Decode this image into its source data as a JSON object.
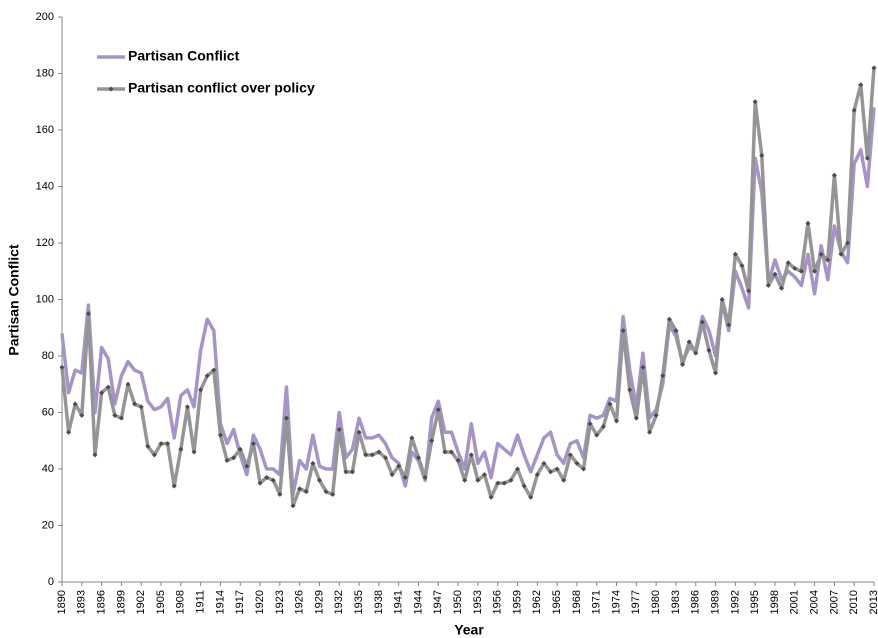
{
  "chart_data": {
    "type": "line",
    "x_label": "Year",
    "y_label": "Partisan Conflict",
    "x": [
      1890,
      1891,
      1892,
      1893,
      1894,
      1895,
      1896,
      1897,
      1898,
      1899,
      1900,
      1901,
      1902,
      1903,
      1904,
      1905,
      1906,
      1907,
      1908,
      1909,
      1910,
      1911,
      1912,
      1913,
      1914,
      1915,
      1916,
      1917,
      1918,
      1919,
      1920,
      1921,
      1922,
      1923,
      1924,
      1925,
      1926,
      1927,
      1928,
      1929,
      1930,
      1931,
      1932,
      1933,
      1934,
      1935,
      1936,
      1937,
      1938,
      1939,
      1940,
      1941,
      1942,
      1943,
      1944,
      1945,
      1946,
      1947,
      1948,
      1949,
      1950,
      1951,
      1952,
      1953,
      1954,
      1955,
      1956,
      1957,
      1958,
      1959,
      1960,
      1961,
      1962,
      1963,
      1964,
      1965,
      1966,
      1967,
      1968,
      1969,
      1970,
      1971,
      1972,
      1973,
      1974,
      1975,
      1976,
      1977,
      1978,
      1979,
      1980,
      1981,
      1982,
      1983,
      1984,
      1985,
      1986,
      1987,
      1988,
      1989,
      1990,
      1991,
      1992,
      1993,
      1994,
      1995,
      1996,
      1997,
      1998,
      1999,
      2000,
      2001,
      2002,
      2003,
      2004,
      2005,
      2006,
      2007,
      2008,
      2009,
      2010,
      2011,
      2012,
      2013
    ],
    "xlim": [
      1890,
      2013
    ],
    "xticks": [
      1890,
      1893,
      1896,
      1899,
      1902,
      1905,
      1908,
      1911,
      1914,
      1917,
      1920,
      1923,
      1926,
      1929,
      1932,
      1935,
      1938,
      1941,
      1944,
      1947,
      1950,
      1953,
      1956,
      1959,
      1962,
      1965,
      1968,
      1971,
      1974,
      1977,
      1980,
      1983,
      1986,
      1989,
      1992,
      1995,
      1998,
      2001,
      2004,
      2007,
      2010,
      2013
    ],
    "ylim": [
      0,
      200
    ],
    "yticks": [
      0,
      20,
      40,
      60,
      80,
      100,
      120,
      140,
      160,
      180,
      200
    ],
    "series": [
      {
        "name": "Partisan Conflict",
        "color": "#a593c9",
        "markers": false,
        "values": [
          88,
          67,
          75,
          74,
          98,
          60,
          83,
          79,
          63,
          73,
          78,
          75,
          74,
          64,
          61,
          62,
          65,
          51,
          66,
          68,
          62,
          82,
          93,
          89,
          56,
          49,
          54,
          45,
          38,
          52,
          47,
          40,
          40,
          38,
          69,
          31,
          43,
          40,
          52,
          41,
          40,
          40,
          60,
          44,
          47,
          58,
          51,
          51,
          52,
          49,
          44,
          42,
          34,
          46,
          43,
          36,
          58,
          64,
          53,
          53,
          46,
          40,
          56,
          42,
          46,
          37,
          49,
          47,
          45,
          52,
          45,
          39,
          45,
          51,
          53,
          45,
          42,
          49,
          50,
          44,
          59,
          58,
          59,
          65,
          64,
          94,
          75,
          62,
          81,
          58,
          61,
          70,
          91,
          87,
          78,
          83,
          82,
          94,
          89,
          80,
          99,
          89,
          110,
          104,
          97,
          150,
          138,
          106,
          114,
          107,
          110,
          108,
          105,
          116,
          102,
          119,
          107,
          126,
          117,
          113,
          148,
          153,
          140,
          168
        ]
      },
      {
        "name": "Partisan conflict over policy",
        "color": "#959595",
        "markers": true,
        "marker_color": "#4d4d4d",
        "values": [
          76,
          53,
          63,
          59,
          95,
          45,
          67,
          69,
          59,
          58,
          70,
          63,
          62,
          48,
          45,
          49,
          49,
          34,
          47,
          62,
          46,
          68,
          73,
          75,
          52,
          43,
          44,
          47,
          41,
          49,
          35,
          37,
          36,
          31,
          58,
          27,
          33,
          32,
          42,
          36,
          32,
          31,
          54,
          39,
          39,
          53,
          45,
          45,
          46,
          44,
          38,
          41,
          37,
          51,
          44,
          37,
          50,
          61,
          46,
          46,
          43,
          36,
          45,
          36,
          38,
          30,
          35,
          35,
          36,
          40,
          34,
          30,
          38,
          42,
          39,
          40,
          36,
          45,
          42,
          40,
          56,
          52,
          55,
          63,
          57,
          89,
          68,
          58,
          76,
          53,
          59,
          73,
          93,
          89,
          77,
          85,
          81,
          92,
          82,
          74,
          100,
          91,
          116,
          112,
          103,
          170,
          151,
          105,
          109,
          104,
          113,
          111,
          110,
          127,
          110,
          116,
          114,
          144,
          116,
          120,
          167,
          176,
          150,
          182
        ]
      }
    ]
  }
}
